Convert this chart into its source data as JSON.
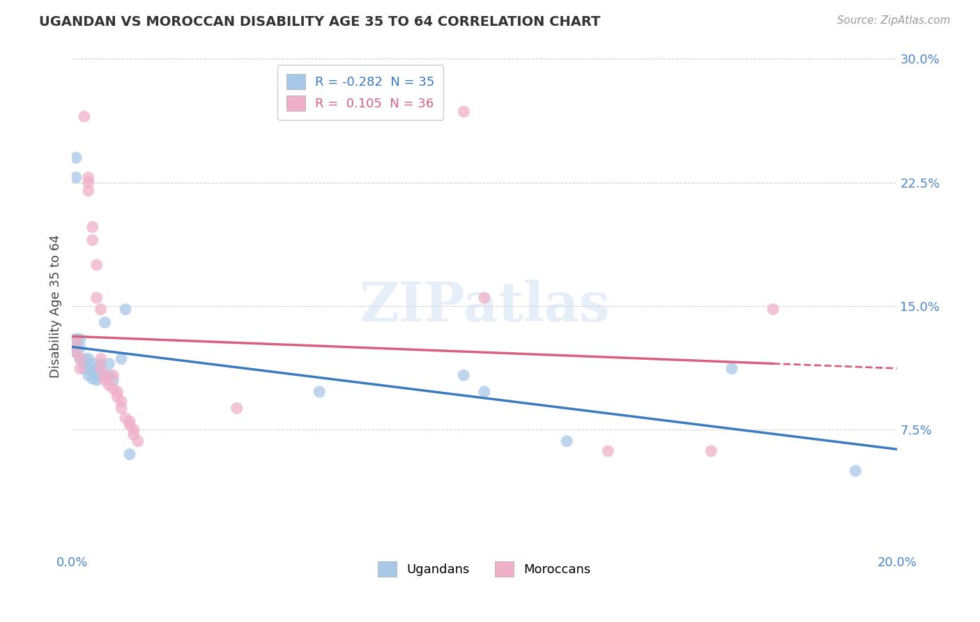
{
  "title": "UGANDAN VS MOROCCAN DISABILITY AGE 35 TO 64 CORRELATION CHART",
  "source": "Source: ZipAtlas.com",
  "ylabel": "Disability Age 35 to 64",
  "xlabel": "",
  "xlim": [
    0.0,
    0.2
  ],
  "ylim": [
    0.0,
    0.3
  ],
  "xticks": [
    0.0,
    0.04,
    0.08,
    0.12,
    0.16,
    0.2
  ],
  "yticks": [
    0.0,
    0.075,
    0.15,
    0.225,
    0.3
  ],
  "ytick_labels_right": [
    "",
    "7.5%",
    "15.0%",
    "22.5%",
    "30.0%"
  ],
  "xtick_labels": [
    "0.0%",
    "",
    "",
    "",
    "",
    "20.0%"
  ],
  "background_color": "#ffffff",
  "grid_color": "#d0d0d0",
  "ugandan_color": "#a8c8e8",
  "moroccan_color": "#f0b0c8",
  "ugandan_line_color": "#3a7abf",
  "moroccan_line_color": "#d96080",
  "ugandan_R": -0.282,
  "ugandan_N": 35,
  "moroccan_R": 0.105,
  "moroccan_N": 36,
  "watermark": "ZIPatlas",
  "ugandan_points": [
    [
      0.001,
      0.24
    ],
    [
      0.001,
      0.228
    ],
    [
      0.001,
      0.13
    ],
    [
      0.001,
      0.125
    ],
    [
      0.001,
      0.122
    ],
    [
      0.002,
      0.13
    ],
    [
      0.002,
      0.125
    ],
    [
      0.002,
      0.118
    ],
    [
      0.003,
      0.118
    ],
    [
      0.003,
      0.115
    ],
    [
      0.003,
      0.112
    ],
    [
      0.004,
      0.118
    ],
    [
      0.004,
      0.112
    ],
    [
      0.004,
      0.108
    ],
    [
      0.005,
      0.115
    ],
    [
      0.005,
      0.11
    ],
    [
      0.005,
      0.106
    ],
    [
      0.006,
      0.112
    ],
    [
      0.006,
      0.108
    ],
    [
      0.006,
      0.105
    ],
    [
      0.007,
      0.115
    ],
    [
      0.007,
      0.11
    ],
    [
      0.008,
      0.14
    ],
    [
      0.009,
      0.115
    ],
    [
      0.009,
      0.108
    ],
    [
      0.01,
      0.105
    ],
    [
      0.012,
      0.118
    ],
    [
      0.013,
      0.148
    ],
    [
      0.014,
      0.06
    ],
    [
      0.06,
      0.098
    ],
    [
      0.095,
      0.108
    ],
    [
      0.1,
      0.098
    ],
    [
      0.12,
      0.068
    ],
    [
      0.16,
      0.112
    ],
    [
      0.19,
      0.05
    ]
  ],
  "moroccan_points": [
    [
      0.001,
      0.128
    ],
    [
      0.001,
      0.122
    ],
    [
      0.002,
      0.118
    ],
    [
      0.002,
      0.112
    ],
    [
      0.003,
      0.265
    ],
    [
      0.004,
      0.228
    ],
    [
      0.004,
      0.225
    ],
    [
      0.004,
      0.22
    ],
    [
      0.005,
      0.198
    ],
    [
      0.005,
      0.19
    ],
    [
      0.006,
      0.175
    ],
    [
      0.006,
      0.155
    ],
    [
      0.007,
      0.148
    ],
    [
      0.007,
      0.118
    ],
    [
      0.007,
      0.112
    ],
    [
      0.008,
      0.108
    ],
    [
      0.008,
      0.105
    ],
    [
      0.009,
      0.102
    ],
    [
      0.01,
      0.108
    ],
    [
      0.01,
      0.1
    ],
    [
      0.011,
      0.098
    ],
    [
      0.011,
      0.095
    ],
    [
      0.012,
      0.092
    ],
    [
      0.012,
      0.088
    ],
    [
      0.013,
      0.082
    ],
    [
      0.014,
      0.08
    ],
    [
      0.014,
      0.078
    ],
    [
      0.015,
      0.075
    ],
    [
      0.015,
      0.072
    ],
    [
      0.016,
      0.068
    ],
    [
      0.04,
      0.088
    ],
    [
      0.095,
      0.268
    ],
    [
      0.1,
      0.155
    ],
    [
      0.13,
      0.062
    ],
    [
      0.155,
      0.062
    ],
    [
      0.17,
      0.148
    ]
  ]
}
